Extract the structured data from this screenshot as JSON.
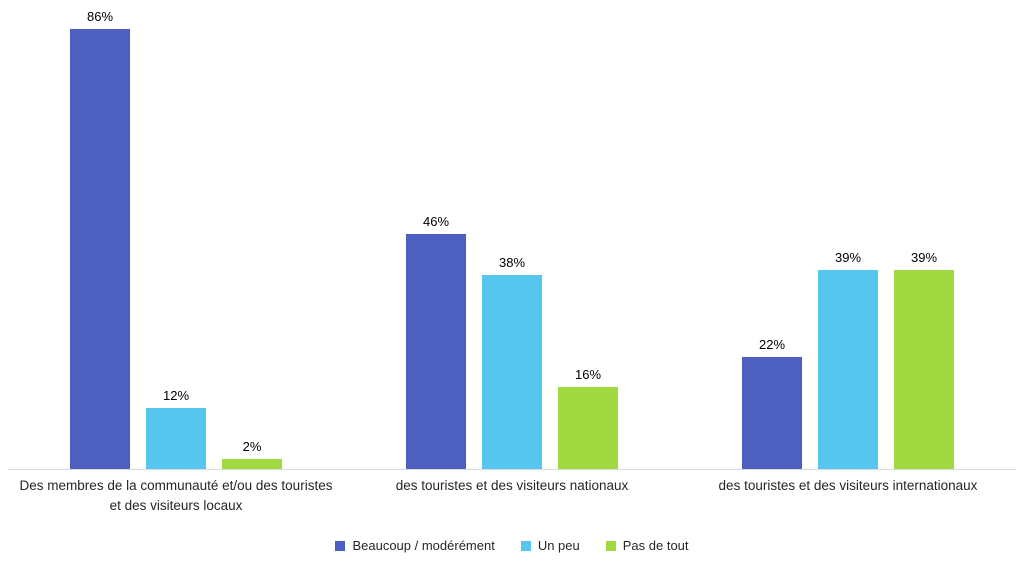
{
  "chart_data": {
    "type": "bar",
    "title": "",
    "xlabel": "",
    "ylabel": "",
    "value_suffix": "%",
    "ylim": [
      0,
      90
    ],
    "grid": false,
    "legend_position": "bottom",
    "categories": [
      "Des membres de la communauté et/ou des touristes et des visiteurs locaux",
      "des touristes et des visiteurs nationaux",
      "des touristes et des visiteurs internationaux"
    ],
    "series": [
      {
        "name": "Beaucoup / modérément",
        "color": "#4d5fc0",
        "values": [
          86,
          46,
          22
        ]
      },
      {
        "name": "Un peu",
        "color": "#55c6ee",
        "values": [
          12,
          38,
          39
        ]
      },
      {
        "name": "Pas de tout",
        "color": "#a1d940",
        "values": [
          2,
          16,
          39
        ]
      }
    ],
    "axis_line_color": "#d9d9d9"
  }
}
